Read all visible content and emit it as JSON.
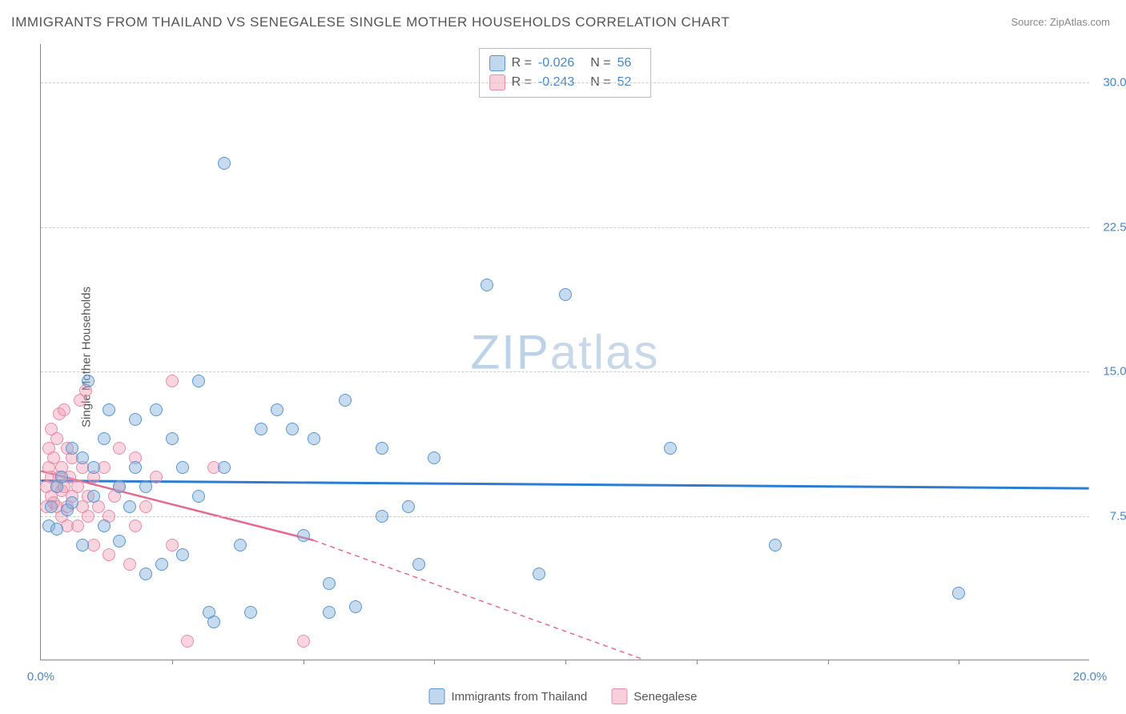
{
  "title": "IMMIGRANTS FROM THAILAND VS SENEGALESE SINGLE MOTHER HOUSEHOLDS CORRELATION CHART",
  "source": "Source: ZipAtlas.com",
  "y_axis_label": "Single Mother Households",
  "watermark_zip": "ZIP",
  "watermark_atlas": "atlas",
  "chart": {
    "type": "scatter",
    "xlim": [
      0,
      20
    ],
    "ylim": [
      0,
      32
    ],
    "x_tick_labels": {
      "0": "0.0%",
      "20": "20.0%"
    },
    "x_minor_ticks": [
      2.5,
      5,
      7.5,
      10,
      12.5,
      15,
      17.5
    ],
    "y_gridlines": [
      7.5,
      15,
      22.5,
      30
    ],
    "y_tick_labels": {
      "7.5": "7.5%",
      "15": "15.0%",
      "22.5": "22.5%",
      "30": "30.0%"
    },
    "background_color": "#ffffff",
    "grid_color": "#cccccc",
    "axis_color": "#888888",
    "tick_label_color": "#4a86c7",
    "marker_size": 16
  },
  "series": {
    "blue": {
      "name": "Immigrants from Thailand",
      "fill_color": "rgba(130,175,220,0.45)",
      "stroke_color": "#5a95d0",
      "trend_color": "#2b7cd3",
      "trend_width": 3,
      "R": "-0.026",
      "N": "56",
      "trend": {
        "y_at_x0": 9.3,
        "y_at_xmax": 8.9
      },
      "points": [
        [
          0.15,
          7.0
        ],
        [
          0.2,
          8.0
        ],
        [
          0.3,
          9.0
        ],
        [
          0.3,
          6.8
        ],
        [
          0.4,
          9.5
        ],
        [
          0.5,
          7.8
        ],
        [
          0.6,
          8.2
        ],
        [
          0.6,
          11.0
        ],
        [
          0.8,
          10.5
        ],
        [
          0.8,
          6.0
        ],
        [
          0.9,
          14.5
        ],
        [
          1.0,
          10.0
        ],
        [
          1.0,
          8.5
        ],
        [
          1.2,
          7.0
        ],
        [
          1.2,
          11.5
        ],
        [
          1.3,
          13.0
        ],
        [
          1.5,
          9.0
        ],
        [
          1.5,
          6.2
        ],
        [
          1.7,
          8.0
        ],
        [
          1.8,
          12.5
        ],
        [
          1.8,
          10.0
        ],
        [
          2.0,
          4.5
        ],
        [
          2.0,
          9.0
        ],
        [
          2.2,
          13.0
        ],
        [
          2.3,
          5.0
        ],
        [
          2.5,
          11.5
        ],
        [
          2.7,
          10.0
        ],
        [
          2.7,
          5.5
        ],
        [
          3.0,
          8.5
        ],
        [
          3.0,
          14.5
        ],
        [
          3.2,
          2.5
        ],
        [
          3.3,
          2.0
        ],
        [
          3.5,
          25.8
        ],
        [
          3.5,
          10.0
        ],
        [
          3.8,
          6.0
        ],
        [
          4.0,
          2.5
        ],
        [
          4.2,
          12.0
        ],
        [
          4.5,
          13.0
        ],
        [
          4.8,
          12.0
        ],
        [
          5.0,
          6.5
        ],
        [
          5.2,
          11.5
        ],
        [
          5.5,
          4.0
        ],
        [
          5.5,
          2.5
        ],
        [
          5.8,
          13.5
        ],
        [
          6.0,
          2.8
        ],
        [
          6.5,
          7.5
        ],
        [
          6.5,
          11.0
        ],
        [
          7.0,
          8.0
        ],
        [
          7.2,
          5.0
        ],
        [
          7.5,
          10.5
        ],
        [
          8.5,
          19.5
        ],
        [
          9.5,
          4.5
        ],
        [
          10.0,
          19.0
        ],
        [
          12.0,
          11.0
        ],
        [
          14.0,
          6.0
        ],
        [
          17.5,
          3.5
        ]
      ]
    },
    "pink": {
      "name": "Senegalese",
      "fill_color": "rgba(240,150,175,0.40)",
      "stroke_color": "#e88ca8",
      "trend_color": "#e56a8f",
      "trend_width": 2.5,
      "R": "-0.243",
      "N": "52",
      "trend": {
        "y_at_x0": 9.8,
        "y_at_solid_end_x": 5.2,
        "solid_end_y": 6.2,
        "y_at_dash_end_x": 11.5,
        "dash_end_y": 0
      },
      "points": [
        [
          0.1,
          9.0
        ],
        [
          0.1,
          8.0
        ],
        [
          0.15,
          11.0
        ],
        [
          0.15,
          10.0
        ],
        [
          0.2,
          9.5
        ],
        [
          0.2,
          8.5
        ],
        [
          0.2,
          12.0
        ],
        [
          0.25,
          10.5
        ],
        [
          0.25,
          8.2
        ],
        [
          0.3,
          9.0
        ],
        [
          0.3,
          11.5
        ],
        [
          0.3,
          8.0
        ],
        [
          0.35,
          12.8
        ],
        [
          0.35,
          9.5
        ],
        [
          0.4,
          10.0
        ],
        [
          0.4,
          7.5
        ],
        [
          0.4,
          8.8
        ],
        [
          0.45,
          13.0
        ],
        [
          0.45,
          9.0
        ],
        [
          0.5,
          11.0
        ],
        [
          0.5,
          8.0
        ],
        [
          0.5,
          7.0
        ],
        [
          0.55,
          9.5
        ],
        [
          0.6,
          10.5
        ],
        [
          0.6,
          8.5
        ],
        [
          0.7,
          9.0
        ],
        [
          0.7,
          7.0
        ],
        [
          0.75,
          13.5
        ],
        [
          0.8,
          8.0
        ],
        [
          0.8,
          10.0
        ],
        [
          0.85,
          14.0
        ],
        [
          0.9,
          8.5
        ],
        [
          0.9,
          7.5
        ],
        [
          1.0,
          9.5
        ],
        [
          1.0,
          6.0
        ],
        [
          1.1,
          8.0
        ],
        [
          1.2,
          10.0
        ],
        [
          1.3,
          5.5
        ],
        [
          1.3,
          7.5
        ],
        [
          1.4,
          8.5
        ],
        [
          1.5,
          11.0
        ],
        [
          1.5,
          9.0
        ],
        [
          1.7,
          5.0
        ],
        [
          1.8,
          10.5
        ],
        [
          1.8,
          7.0
        ],
        [
          2.0,
          8.0
        ],
        [
          2.2,
          9.5
        ],
        [
          2.5,
          14.5
        ],
        [
          2.5,
          6.0
        ],
        [
          2.8,
          1.0
        ],
        [
          3.3,
          10.0
        ],
        [
          5.0,
          1.0
        ]
      ]
    }
  },
  "stats_legend": {
    "R_label": "R =",
    "N_label": "N ="
  },
  "bottom_legend": {
    "blue_label": "Immigrants from Thailand",
    "pink_label": "Senegalese"
  }
}
